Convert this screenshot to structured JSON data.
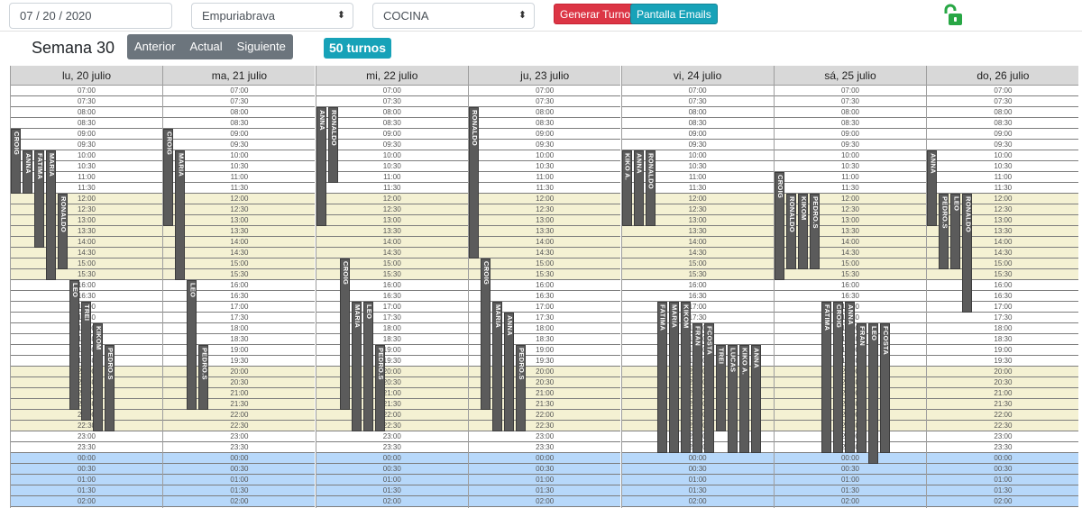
{
  "toolbar": {
    "date": "07 / 20 / 2020",
    "location": "Empuriabrava",
    "department": "COCINA",
    "generate_label": "Generar Turnos",
    "emails_label": "Pantalla Emails",
    "lock_icon": "unlock-icon",
    "lock_color": "#28a745"
  },
  "week": {
    "title": "Semana 30",
    "prev": "Anterior",
    "current": "Actual",
    "next": "Siguiente",
    "count_badge": "50 turnos"
  },
  "colors": {
    "day_slot": "#f4f1d3",
    "night_slot": "#b7d8fa",
    "shift": "#5b5b5b"
  },
  "times": [
    "07:00",
    "07:30",
    "08:00",
    "08:30",
    "09:00",
    "09:30",
    "10:00",
    "10:30",
    "11:00",
    "11:30",
    "12:00",
    "12:30",
    "13:00",
    "13:30",
    "14:00",
    "14:30",
    "15:00",
    "15:30",
    "16:00",
    "16:30",
    "17:00",
    "17:30",
    "18:00",
    "18:30",
    "19:00",
    "19:30",
    "20:00",
    "20:30",
    "21:00",
    "21:30",
    "22:00",
    "22:30",
    "23:00",
    "23:30",
    "00:00",
    "00:30",
    "01:00",
    "01:30",
    "02:00"
  ],
  "days": [
    {
      "label": "lu, 20 julio",
      "shifts": [
        {
          "name": "CROIG",
          "start": "09:00",
          "end": "12:00"
        },
        {
          "name": "ANNA",
          "start": "10:00",
          "end": "12:00"
        },
        {
          "name": "FATIMA",
          "start": "10:00",
          "end": "14:30"
        },
        {
          "name": "MARIA",
          "start": "10:00",
          "end": "16:00"
        },
        {
          "name": "RONALDO",
          "start": "12:00",
          "end": "15:30"
        },
        {
          "name": "LEO",
          "start": "16:00",
          "end": "22:00"
        },
        {
          "name": "TREI",
          "start": "17:00",
          "end": "22:30"
        },
        {
          "name": "KIKOM",
          "start": "18:00",
          "end": "23:00"
        },
        {
          "name": "PEDRO.S",
          "start": "19:00",
          "end": "23:00"
        }
      ]
    },
    {
      "label": "ma, 21 julio",
      "shifts": [
        {
          "name": "CROIG",
          "start": "09:00",
          "end": "13:30"
        },
        {
          "name": "MARIA",
          "start": "10:00",
          "end": "16:00"
        },
        {
          "name": "LEO",
          "start": "16:00",
          "end": "22:00"
        },
        {
          "name": "PEDRO.S",
          "start": "19:00",
          "end": "22:00"
        }
      ]
    },
    {
      "label": "mi, 22 julio",
      "shifts": [
        {
          "name": "ANNA",
          "start": "08:00",
          "end": "13:30"
        },
        {
          "name": "RONALDO",
          "start": "08:00",
          "end": "11:30"
        },
        {
          "name": "CROIG",
          "start": "15:00",
          "end": "22:00"
        },
        {
          "name": "MARIA",
          "start": "17:00",
          "end": "23:00"
        },
        {
          "name": "LEO",
          "start": "17:00",
          "end": "23:00"
        },
        {
          "name": "PEDRO.S",
          "start": "19:00",
          "end": "23:00"
        }
      ]
    },
    {
      "label": "ju, 23 julio",
      "shifts": [
        {
          "name": "RONALDO",
          "start": "08:00",
          "end": "15:00"
        },
        {
          "name": "CROIG",
          "start": "15:00",
          "end": "22:00"
        },
        {
          "name": "MARIA",
          "start": "17:00",
          "end": "23:00"
        },
        {
          "name": "ANNA",
          "start": "17:30",
          "end": "23:00"
        },
        {
          "name": "PEDRO.S",
          "start": "19:00",
          "end": "23:00"
        }
      ]
    },
    {
      "label": "vi, 24 julio",
      "shifts": [
        {
          "name": "KIKO A.",
          "start": "10:00",
          "end": "13:30"
        },
        {
          "name": "ANNA",
          "start": "10:00",
          "end": "13:30"
        },
        {
          "name": "RONALDO",
          "start": "10:00",
          "end": "13:30"
        },
        {
          "name": "FATIMA",
          "start": "17:00",
          "end": "24:00"
        },
        {
          "name": "MARIA",
          "start": "17:00",
          "end": "24:00"
        },
        {
          "name": "KIKOM",
          "start": "17:00",
          "end": "24:00"
        },
        {
          "name": "FRAN",
          "start": "18:00",
          "end": "24:00"
        },
        {
          "name": "FCOSTA",
          "start": "18:00",
          "end": "24:00"
        },
        {
          "name": "TREI",
          "start": "19:00",
          "end": "23:00"
        },
        {
          "name": "LUCAS",
          "start": "19:00",
          "end": "24:00"
        },
        {
          "name": "KIKO A.",
          "start": "19:00",
          "end": "24:00"
        },
        {
          "name": "ANNA",
          "start": "19:00",
          "end": "24:00"
        }
      ]
    },
    {
      "label": "sá, 25 julio",
      "shifts": [
        {
          "name": "CROIG",
          "start": "11:00",
          "end": "16:00"
        },
        {
          "name": "RONALDO",
          "start": "12:00",
          "end": "15:30"
        },
        {
          "name": "KIKOM",
          "start": "12:00",
          "end": "15:30"
        },
        {
          "name": "PEDRO.S",
          "start": "12:00",
          "end": "15:30"
        },
        {
          "name": "FATIMA",
          "start": "17:00",
          "end": "24:00"
        },
        {
          "name": "CROIG",
          "start": "17:00",
          "end": "24:00"
        },
        {
          "name": "ANNA",
          "start": "17:00",
          "end": "24:00"
        },
        {
          "name": "FRAN",
          "start": "18:00",
          "end": "24:00"
        },
        {
          "name": "LEO",
          "start": "18:00",
          "end": "24:30"
        },
        {
          "name": "FCOSTA",
          "start": "18:00",
          "end": "24:00"
        }
      ]
    },
    {
      "label": "do, 26 julio",
      "shifts": [
        {
          "name": "ANNA",
          "start": "10:00",
          "end": "13:30"
        },
        {
          "name": "PEDRO.S",
          "start": "12:00",
          "end": "15:30"
        },
        {
          "name": "LEO",
          "start": "12:00",
          "end": "15:30"
        },
        {
          "name": "RONALDO",
          "start": "12:00",
          "end": "17:30"
        }
      ]
    }
  ]
}
